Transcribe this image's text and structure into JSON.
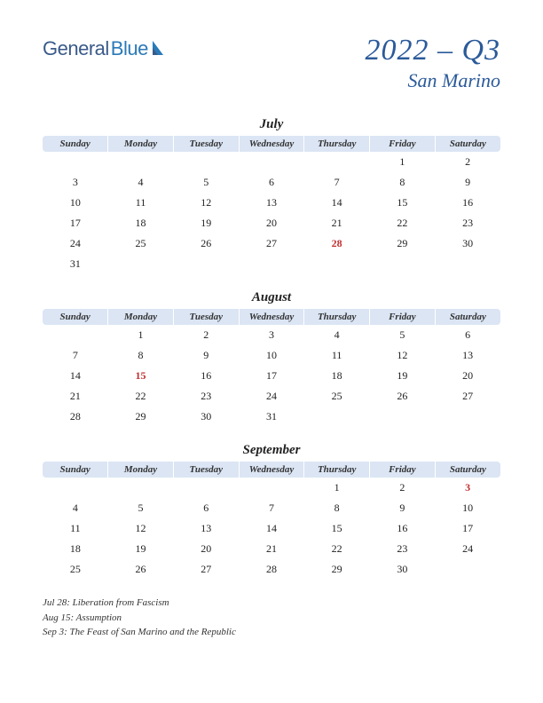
{
  "logo": {
    "part1": "General",
    "part2": "Blue"
  },
  "title": {
    "quarter": "2022 – Q3",
    "country": "San Marino"
  },
  "day_headers": [
    "Sunday",
    "Monday",
    "Tuesday",
    "Wednesday",
    "Thursday",
    "Friday",
    "Saturday"
  ],
  "colors": {
    "header_bg": "#dbe5f4",
    "title_color": "#2b5a9a",
    "holiday_color": "#c23030",
    "text_color": "#222222",
    "logo_dark": "#3a5a8a",
    "logo_light": "#2b7ab8"
  },
  "months": [
    {
      "name": "July",
      "weeks": [
        [
          "",
          "",
          "",
          "",
          "",
          "1",
          "2"
        ],
        [
          "3",
          "4",
          "5",
          "6",
          "7",
          "8",
          "9"
        ],
        [
          "10",
          "11",
          "12",
          "13",
          "14",
          "15",
          "16"
        ],
        [
          "17",
          "18",
          "19",
          "20",
          "21",
          "22",
          "23"
        ],
        [
          "24",
          "25",
          "26",
          "27",
          "28",
          "29",
          "30"
        ],
        [
          "31",
          "",
          "",
          "",
          "",
          "",
          ""
        ]
      ],
      "holidays_idx": [
        [
          4,
          4
        ]
      ]
    },
    {
      "name": "August",
      "weeks": [
        [
          "",
          "1",
          "2",
          "3",
          "4",
          "5",
          "6"
        ],
        [
          "7",
          "8",
          "9",
          "10",
          "11",
          "12",
          "13"
        ],
        [
          "14",
          "15",
          "16",
          "17",
          "18",
          "19",
          "20"
        ],
        [
          "21",
          "22",
          "23",
          "24",
          "25",
          "26",
          "27"
        ],
        [
          "28",
          "29",
          "30",
          "31",
          "",
          "",
          ""
        ]
      ],
      "holidays_idx": [
        [
          2,
          1
        ]
      ]
    },
    {
      "name": "September",
      "weeks": [
        [
          "",
          "",
          "",
          "",
          "1",
          "2",
          "3"
        ],
        [
          "4",
          "5",
          "6",
          "7",
          "8",
          "9",
          "10"
        ],
        [
          "11",
          "12",
          "13",
          "14",
          "15",
          "16",
          "17"
        ],
        [
          "18",
          "19",
          "20",
          "21",
          "22",
          "23",
          "24"
        ],
        [
          "25",
          "26",
          "27",
          "28",
          "29",
          "30",
          ""
        ]
      ],
      "holidays_idx": [
        [
          0,
          6
        ]
      ]
    }
  ],
  "holiday_notes": [
    "Jul 28: Liberation from Fascism",
    "Aug 15: Assumption",
    "Sep 3: The Feast of San Marino and the Republic"
  ]
}
